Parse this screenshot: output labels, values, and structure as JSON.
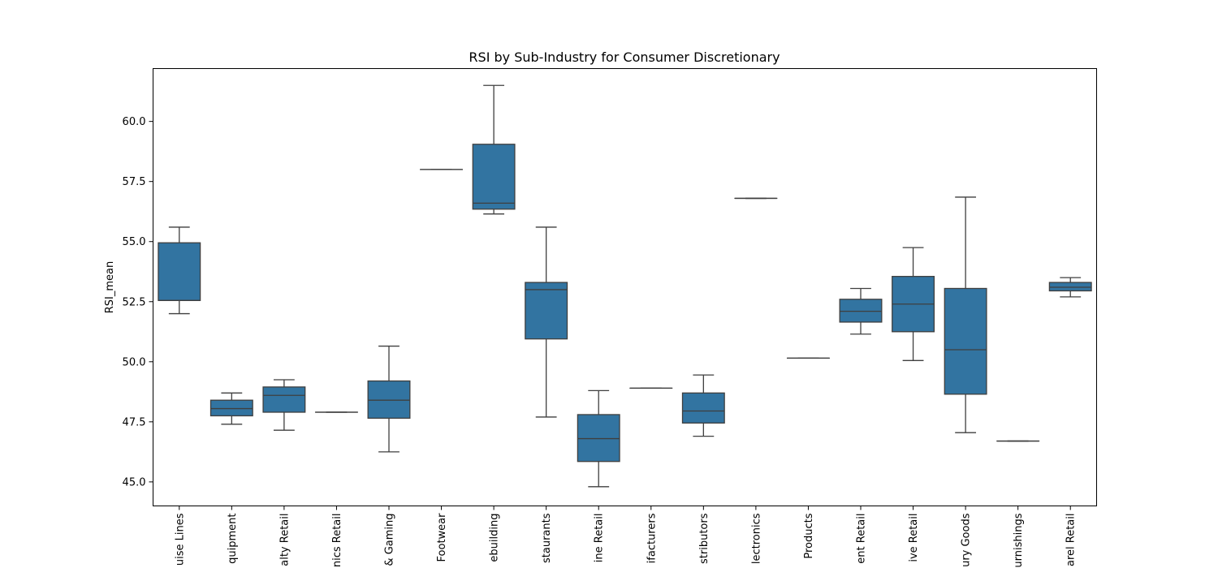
{
  "chart_data": {
    "type": "box",
    "title": "RSI by Sub-Industry for Consumer Discretionary",
    "xlabel": "",
    "ylabel": "RSI_mean",
    "ylim": [
      44.0,
      62.2
    ],
    "yticks": [
      "45.0",
      "47.5",
      "50.0",
      "52.5",
      "55.0",
      "57.5",
      "60.0"
    ],
    "grid": false,
    "box_color": "#3274a1",
    "line_color": "#3f3f3f",
    "categories": [
      "uise Lines",
      "quipment",
      "alty Retail",
      "nics Retail",
      "& Gaming",
      "Footwear",
      "ebuilding",
      "staurants",
      "ine Retail",
      "ifacturers",
      "stributors",
      "lectronics",
      " Products",
      "ent Retail",
      "ive Retail",
      "ury Goods",
      "urnishings",
      "arel Retail"
    ],
    "boxes": [
      {
        "whislo": 52.0,
        "q1": 52.55,
        "med": 52.55,
        "q3": 54.95,
        "whishi": 55.6
      },
      {
        "whislo": 47.4,
        "q1": 47.75,
        "med": 48.05,
        "q3": 48.4,
        "whishi": 48.7
      },
      {
        "whislo": 47.15,
        "q1": 47.9,
        "med": 48.6,
        "q3": 48.95,
        "whishi": 49.25
      },
      {
        "whislo": 47.9,
        "q1": 47.9,
        "med": 47.9,
        "q3": 47.9,
        "whishi": 47.9
      },
      {
        "whislo": 46.25,
        "q1": 47.65,
        "med": 48.4,
        "q3": 49.2,
        "whishi": 50.65
      },
      {
        "whislo": 58.0,
        "q1": 58.0,
        "med": 58.0,
        "q3": 58.0,
        "whishi": 58.0
      },
      {
        "whislo": 56.15,
        "q1": 56.35,
        "med": 56.6,
        "q3": 59.05,
        "whishi": 61.5
      },
      {
        "whislo": 47.7,
        "q1": 50.95,
        "med": 53.0,
        "q3": 53.3,
        "whishi": 55.6
      },
      {
        "whislo": 44.8,
        "q1": 45.85,
        "med": 46.8,
        "q3": 47.8,
        "whishi": 48.8
      },
      {
        "whislo": 48.9,
        "q1": 48.9,
        "med": 48.9,
        "q3": 48.9,
        "whishi": 48.9
      },
      {
        "whislo": 46.9,
        "q1": 47.45,
        "med": 47.95,
        "q3": 48.7,
        "whishi": 49.45
      },
      {
        "whislo": 56.8,
        "q1": 56.8,
        "med": 56.8,
        "q3": 56.8,
        "whishi": 56.8
      },
      {
        "whislo": 50.15,
        "q1": 50.15,
        "med": 50.15,
        "q3": 50.15,
        "whishi": 50.15
      },
      {
        "whislo": 51.15,
        "q1": 51.65,
        "med": 52.1,
        "q3": 52.6,
        "whishi": 53.05
      },
      {
        "whislo": 50.05,
        "q1": 51.25,
        "med": 52.4,
        "q3": 53.55,
        "whishi": 54.75
      },
      {
        "whislo": 47.05,
        "q1": 48.65,
        "med": 50.5,
        "q3": 53.05,
        "whishi": 56.85
      },
      {
        "whislo": 46.7,
        "q1": 46.7,
        "med": 46.7,
        "q3": 46.7,
        "whishi": 46.7
      },
      {
        "whislo": 52.7,
        "q1": 52.95,
        "med": 53.1,
        "q3": 53.3,
        "whishi": 53.5
      }
    ]
  }
}
